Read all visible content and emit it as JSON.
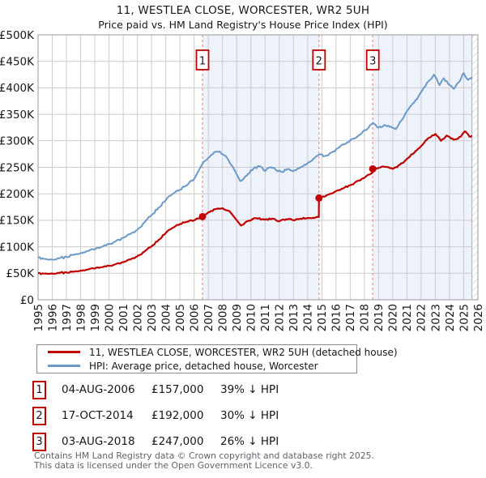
{
  "title": {
    "line1": "11, WESTLEA CLOSE, WORCESTER, WR2 5UH",
    "line2": "Price paid vs. HM Land Registry's House Price Index (HPI)"
  },
  "chart": {
    "colors": {
      "property_line": "#c00000",
      "hpi_line": "#6b99c8",
      "shade": "#eef2fb",
      "dashed_event_line": "#f28f8f",
      "grid": "#cccccc",
      "border": "#999999",
      "hatch": "#c5c9cf",
      "marker_box_border": "#c00000",
      "label_text": "#15171a"
    },
    "y_tick_labels": [
      "£0",
      "£50K",
      "£100K",
      "£150K",
      "£200K",
      "£250K",
      "£300K",
      "£350K",
      "£400K",
      "£450K",
      "£500K"
    ],
    "x_tick_labels": [
      "1995",
      "1996",
      "1997",
      "1998",
      "1999",
      "2000",
      "2001",
      "2002",
      "2003",
      "2004",
      "2005",
      "2006",
      "2007",
      "2008",
      "2009",
      "2010",
      "2011",
      "2012",
      "2013",
      "2014",
      "2015",
      "2016",
      "2017",
      "2018",
      "2019",
      "2020",
      "2021",
      "2022",
      "2023",
      "2024",
      "2025",
      "2026"
    ]
  },
  "chart_data": {
    "type": "line",
    "title": "11, WESTLEA CLOSE, WORCESTER, WR2 5UH — Price paid vs. HPI",
    "xlabel": "",
    "ylabel": "",
    "xlim": [
      1995,
      2026
    ],
    "ylim": [
      0,
      500000
    ],
    "y_tick_step": 50000,
    "grid": true,
    "legend_position": "below",
    "shaded_spans": [
      [
        2006.59,
        2014.8
      ],
      [
        2018.59,
        2026
      ]
    ],
    "hatch_span": [
      2025.58,
      2026
    ],
    "series": [
      {
        "name": "11, WESTLEA CLOSE, WORCESTER, WR2 5UH (detached house)",
        "role": "price-paid",
        "color": "#c00000",
        "x": [
          1995.0,
          1995.5,
          1996.0,
          1996.5,
          1997.0,
          1997.5,
          1998.0,
          1998.5,
          1999.0,
          1999.5,
          2000.0,
          2000.5,
          2001.0,
          2001.5,
          2002.0,
          2002.5,
          2003.0,
          2003.5,
          2004.0,
          2004.5,
          2005.0,
          2005.5,
          2006.0,
          2006.59,
          2007.0,
          2007.5,
          2008.0,
          2008.5,
          2009.3,
          2009.8,
          2010.3,
          2011.0,
          2011.5,
          2012.0,
          2012.5,
          2013.0,
          2013.5,
          2014.0,
          2014.79,
          2014.8,
          2015.5,
          2016.0,
          2016.5,
          2017.0,
          2017.5,
          2018.0,
          2018.58,
          2018.59,
          2019.0,
          2019.5,
          2020.0,
          2020.5,
          2021.0,
          2021.5,
          2022.0,
          2022.5,
          2023.0,
          2023.4,
          2023.8,
          2024.3,
          2024.8,
          2025.1,
          2025.4,
          2025.58
        ],
        "values": [
          50000,
          49500,
          49500,
          50500,
          51500,
          53000,
          55000,
          57000,
          59000,
          61500,
          64000,
          67500,
          71000,
          76000,
          82000,
          91000,
          101000,
          113000,
          126000,
          136000,
          143000,
          147000,
          150000,
          157000,
          165000,
          171000,
          173000,
          167000,
          140000,
          149000,
          154000,
          151000,
          153000,
          148000,
          152000,
          150000,
          153000,
          154000,
          156000,
          192000,
          199000,
          205000,
          210000,
          216000,
          224000,
          230000,
          240000,
          247000,
          249000,
          251000,
          247000,
          255000,
          266000,
          277000,
          290000,
          305000,
          313000,
          300000,
          310000,
          302000,
          308000,
          318000,
          308000,
          310000
        ]
      },
      {
        "name": "HPI: Average price, detached house, Worcester",
        "role": "hpi",
        "color": "#6b99c8",
        "x": [
          1995.0,
          1995.5,
          1996.0,
          1996.5,
          1997.0,
          1997.5,
          1998.0,
          1998.5,
          1999.0,
          1999.5,
          2000.0,
          2000.5,
          2001.0,
          2001.5,
          2002.0,
          2002.5,
          2003.0,
          2003.5,
          2004.0,
          2004.5,
          2005.0,
          2005.5,
          2006.0,
          2006.59,
          2007.0,
          2007.4,
          2007.8,
          2008.2,
          2008.7,
          2009.25,
          2009.7,
          2010.2,
          2010.6,
          2011.0,
          2011.4,
          2011.8,
          2012.2,
          2012.6,
          2013.0,
          2013.5,
          2014.0,
          2014.5,
          2014.79,
          2015.2,
          2015.7,
          2016.2,
          2016.7,
          2017.2,
          2017.7,
          2018.2,
          2018.59,
          2019.0,
          2019.4,
          2019.8,
          2020.2,
          2020.6,
          2021.0,
          2021.5,
          2022.0,
          2022.5,
          2022.9,
          2023.3,
          2023.6,
          2023.9,
          2024.3,
          2024.7,
          2025.0,
          2025.3,
          2025.58
        ],
        "values": [
          80000,
          77000,
          76000,
          78000,
          81000,
          85000,
          88000,
          92000,
          95000,
          100000,
          105000,
          111000,
          117000,
          124000,
          132000,
          146000,
          160000,
          174000,
          188000,
          200000,
          208000,
          216000,
          228000,
          257000,
          268000,
          278000,
          280000,
          272000,
          252000,
          224000,
          234000,
          248000,
          252000,
          243000,
          250000,
          244000,
          241000,
          247000,
          243000,
          250000,
          258000,
          268000,
          274000,
          271000,
          278000,
          287000,
          295000,
          304000,
          312000,
          322000,
          334000,
          325000,
          330000,
          326000,
          322000,
          338000,
          356000,
          372000,
          392000,
          412000,
          425000,
          405000,
          418000,
          408000,
          398000,
          412000,
          428000,
          415000,
          420000
        ]
      }
    ],
    "sales": [
      {
        "n": "1",
        "date": "04-AUG-2006",
        "year": 2006.59,
        "price": 157000,
        "vs_hpi": "39% ↓ HPI"
      },
      {
        "n": "2",
        "date": "17-OCT-2014",
        "year": 2014.8,
        "price": 192000,
        "vs_hpi": "30% ↓ HPI"
      },
      {
        "n": "3",
        "date": "03-AUG-2018",
        "year": 2018.59,
        "price": 247000,
        "vs_hpi": "26% ↓ HPI"
      }
    ]
  },
  "legend": {
    "property": "11, WESTLEA CLOSE, WORCESTER, WR2 5UH (detached house)",
    "hpi": "HPI: Average price, detached house, Worcester"
  },
  "table": {
    "rows": [
      {
        "num": "1",
        "date": "04-AUG-2006",
        "price": "£157,000",
        "vs_hpi": "39% ↓ HPI"
      },
      {
        "num": "2",
        "date": "17-OCT-2014",
        "price": "£192,000",
        "vs_hpi": "30% ↓ HPI"
      },
      {
        "num": "3",
        "date": "03-AUG-2018",
        "price": "£247,000",
        "vs_hpi": "26% ↓ HPI"
      }
    ]
  },
  "footer": {
    "line1": "Contains HM Land Registry data © Crown copyright and database right 2025.",
    "line2": "This data is licensed under the Open Government Licence v3.0."
  }
}
